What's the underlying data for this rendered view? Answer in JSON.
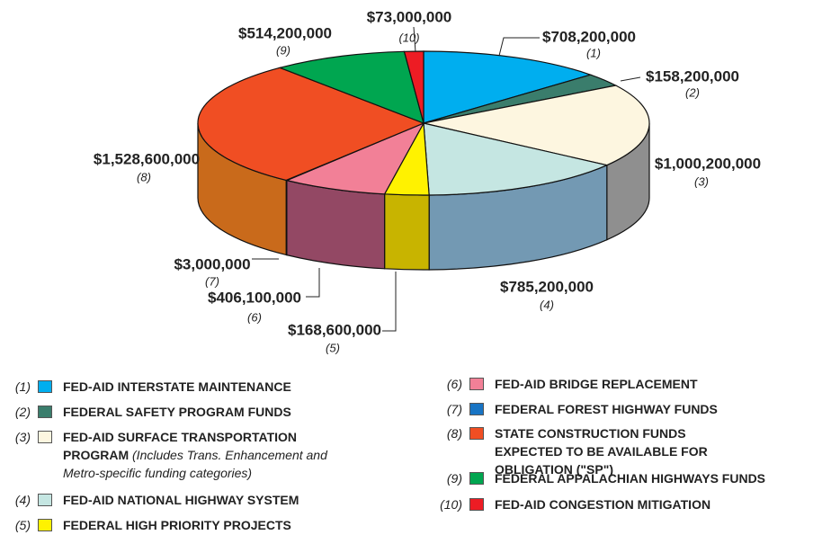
{
  "chart_data": {
    "type": "pie",
    "categories": [
      "FED-AID INTERSTATE MAINTENANCE",
      "FEDERAL SAFETY PROGRAM FUNDS",
      "FED-AID SURFACE TRANSPORTATION PROGRAM",
      "FED-AID NATIONAL HIGHWAY SYSTEM",
      "FEDERAL HIGH PRIORITY PROJECTS",
      "FED-AID BRIDGE REPLACEMENT",
      "FEDERAL FOREST HIGHWAY FUNDS",
      "STATE CONSTRUCTION FUNDS EXPECTED TO BE AVAILABLE FOR OBLIGATION (\"SP\")",
      "FEDERAL APPALACHIAN HIGHWAYS FUNDS",
      "FED-AID CONGESTION MITIGATION"
    ],
    "legend_note": "(Includes Trans. Enhancement and Metro-specific funding categories)",
    "labels": [
      "(1)",
      "(2)",
      "(3)",
      "(4)",
      "(5)",
      "(6)",
      "(7)",
      "(8)",
      "(9)",
      "(10)"
    ],
    "values": [
      708200000,
      158200000,
      1000200000,
      785200000,
      168600000,
      406100000,
      3000000,
      1528600000,
      514200000,
      73000000
    ],
    "value_labels": [
      "$708,200,000",
      "$158,200,000",
      "$1,000,200,000",
      "$785,200,000",
      "$168,600,000",
      "$406,100,000",
      "$3,000,000",
      "$1,528,600,000",
      "$514,200,000",
      "$73,000,000"
    ],
    "colors": [
      "#00aeef",
      "#3a7d6c",
      "#fdf6e0",
      "#c5e6e2",
      "#fff200",
      "#f28097",
      "#1874c4",
      "#f04e23",
      "#00a650",
      "#ed1c24"
    ],
    "side_colors": [
      "#0090c6",
      "#2f6457",
      "#8f8f8f",
      "#7399b3",
      "#c8b400",
      "#934864",
      "#135ea0",
      "#c96a1b",
      "#008540",
      "#c01218"
    ]
  }
}
